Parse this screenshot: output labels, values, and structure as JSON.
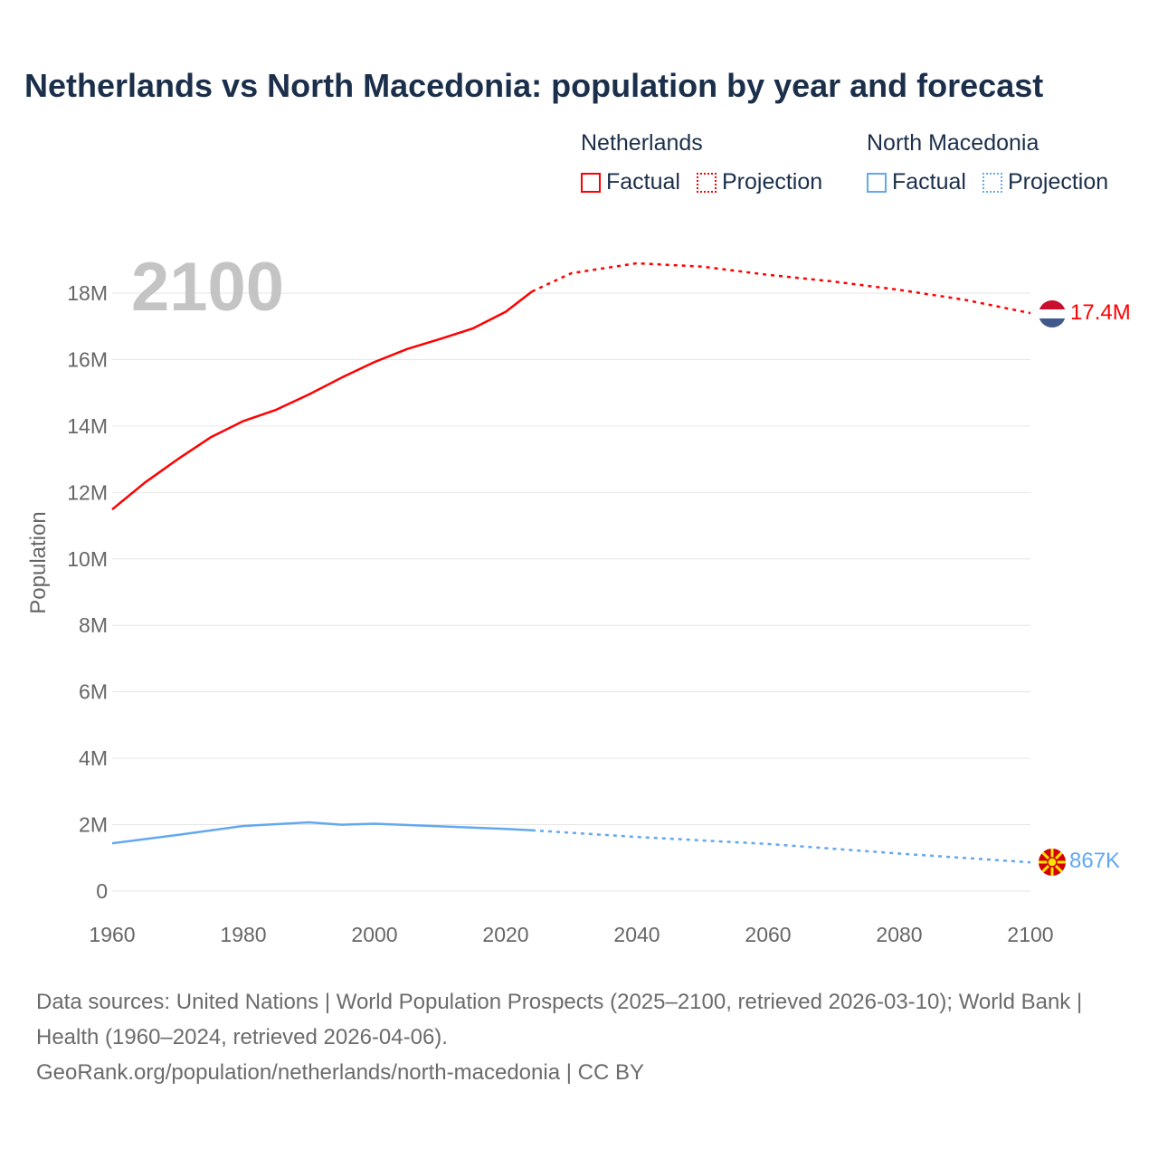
{
  "title": "Netherlands vs North Macedonia: population by year and forecast",
  "legend": {
    "groups": [
      {
        "name": "Netherlands",
        "factual": "Factual",
        "projection": "Projection",
        "color": "#ff0000"
      },
      {
        "name": "North Macedonia",
        "factual": "Factual",
        "projection": "Projection",
        "color": "#62a8f0"
      }
    ]
  },
  "year_label": "2100",
  "source": {
    "line1": "Data sources: United Nations | World Population Prospects (2025–2100, retrieved 2026-03-10); World Bank | Health (1960–2024, retrieved 2026-04-06).",
    "line2": "GeoRank.org/population/netherlands/north-macedonia | CC BY"
  },
  "chart_data": {
    "type": "line",
    "ylabel": "Population",
    "xlim": [
      1960,
      2100
    ],
    "ylim": [
      0,
      19000000
    ],
    "x_ticks": [
      "1960",
      "1980",
      "2000",
      "2020",
      "2040",
      "2060",
      "2080",
      "2100"
    ],
    "y_ticks": [
      {
        "v": 0,
        "label": "0"
      },
      {
        "v": 2000000,
        "label": "2M"
      },
      {
        "v": 4000000,
        "label": "4M"
      },
      {
        "v": 6000000,
        "label": "6M"
      },
      {
        "v": 8000000,
        "label": "8M"
      },
      {
        "v": 10000000,
        "label": "10M"
      },
      {
        "v": 12000000,
        "label": "12M"
      },
      {
        "v": 14000000,
        "label": "14M"
      },
      {
        "v": 16000000,
        "label": "16M"
      },
      {
        "v": 18000000,
        "label": "18M"
      }
    ],
    "series": [
      {
        "name": "Netherlands",
        "color": "#ff0000",
        "end_label": "17.4M",
        "factual": [
          [
            1960,
            11.49
          ],
          [
            1965,
            12.3
          ],
          [
            1970,
            13.0
          ],
          [
            1975,
            13.66
          ],
          [
            1980,
            14.15
          ],
          [
            1985,
            14.49
          ],
          [
            1990,
            14.95
          ],
          [
            1995,
            15.46
          ],
          [
            2000,
            15.93
          ],
          [
            2005,
            16.32
          ],
          [
            2010,
            16.62
          ],
          [
            2015,
            16.94
          ],
          [
            2020,
            17.44
          ],
          [
            2024,
            18.05
          ]
        ],
        "projection": [
          [
            2024,
            18.05
          ],
          [
            2030,
            18.6
          ],
          [
            2040,
            18.9
          ],
          [
            2050,
            18.8
          ],
          [
            2060,
            18.55
          ],
          [
            2070,
            18.35
          ],
          [
            2080,
            18.1
          ],
          [
            2090,
            17.8
          ],
          [
            2100,
            17.4
          ]
        ]
      },
      {
        "name": "North Macedonia",
        "color": "#62a8f0",
        "end_label": "867K",
        "factual": [
          [
            1960,
            1.44
          ],
          [
            1970,
            1.69
          ],
          [
            1980,
            1.96
          ],
          [
            1990,
            2.07
          ],
          [
            1995,
            2.0
          ],
          [
            2000,
            2.03
          ],
          [
            2010,
            1.95
          ],
          [
            2020,
            1.87
          ],
          [
            2024,
            1.83
          ]
        ],
        "projection": [
          [
            2024,
            1.83
          ],
          [
            2040,
            1.63
          ],
          [
            2060,
            1.42
          ],
          [
            2080,
            1.13
          ],
          [
            2100,
            0.867
          ]
        ]
      }
    ]
  }
}
